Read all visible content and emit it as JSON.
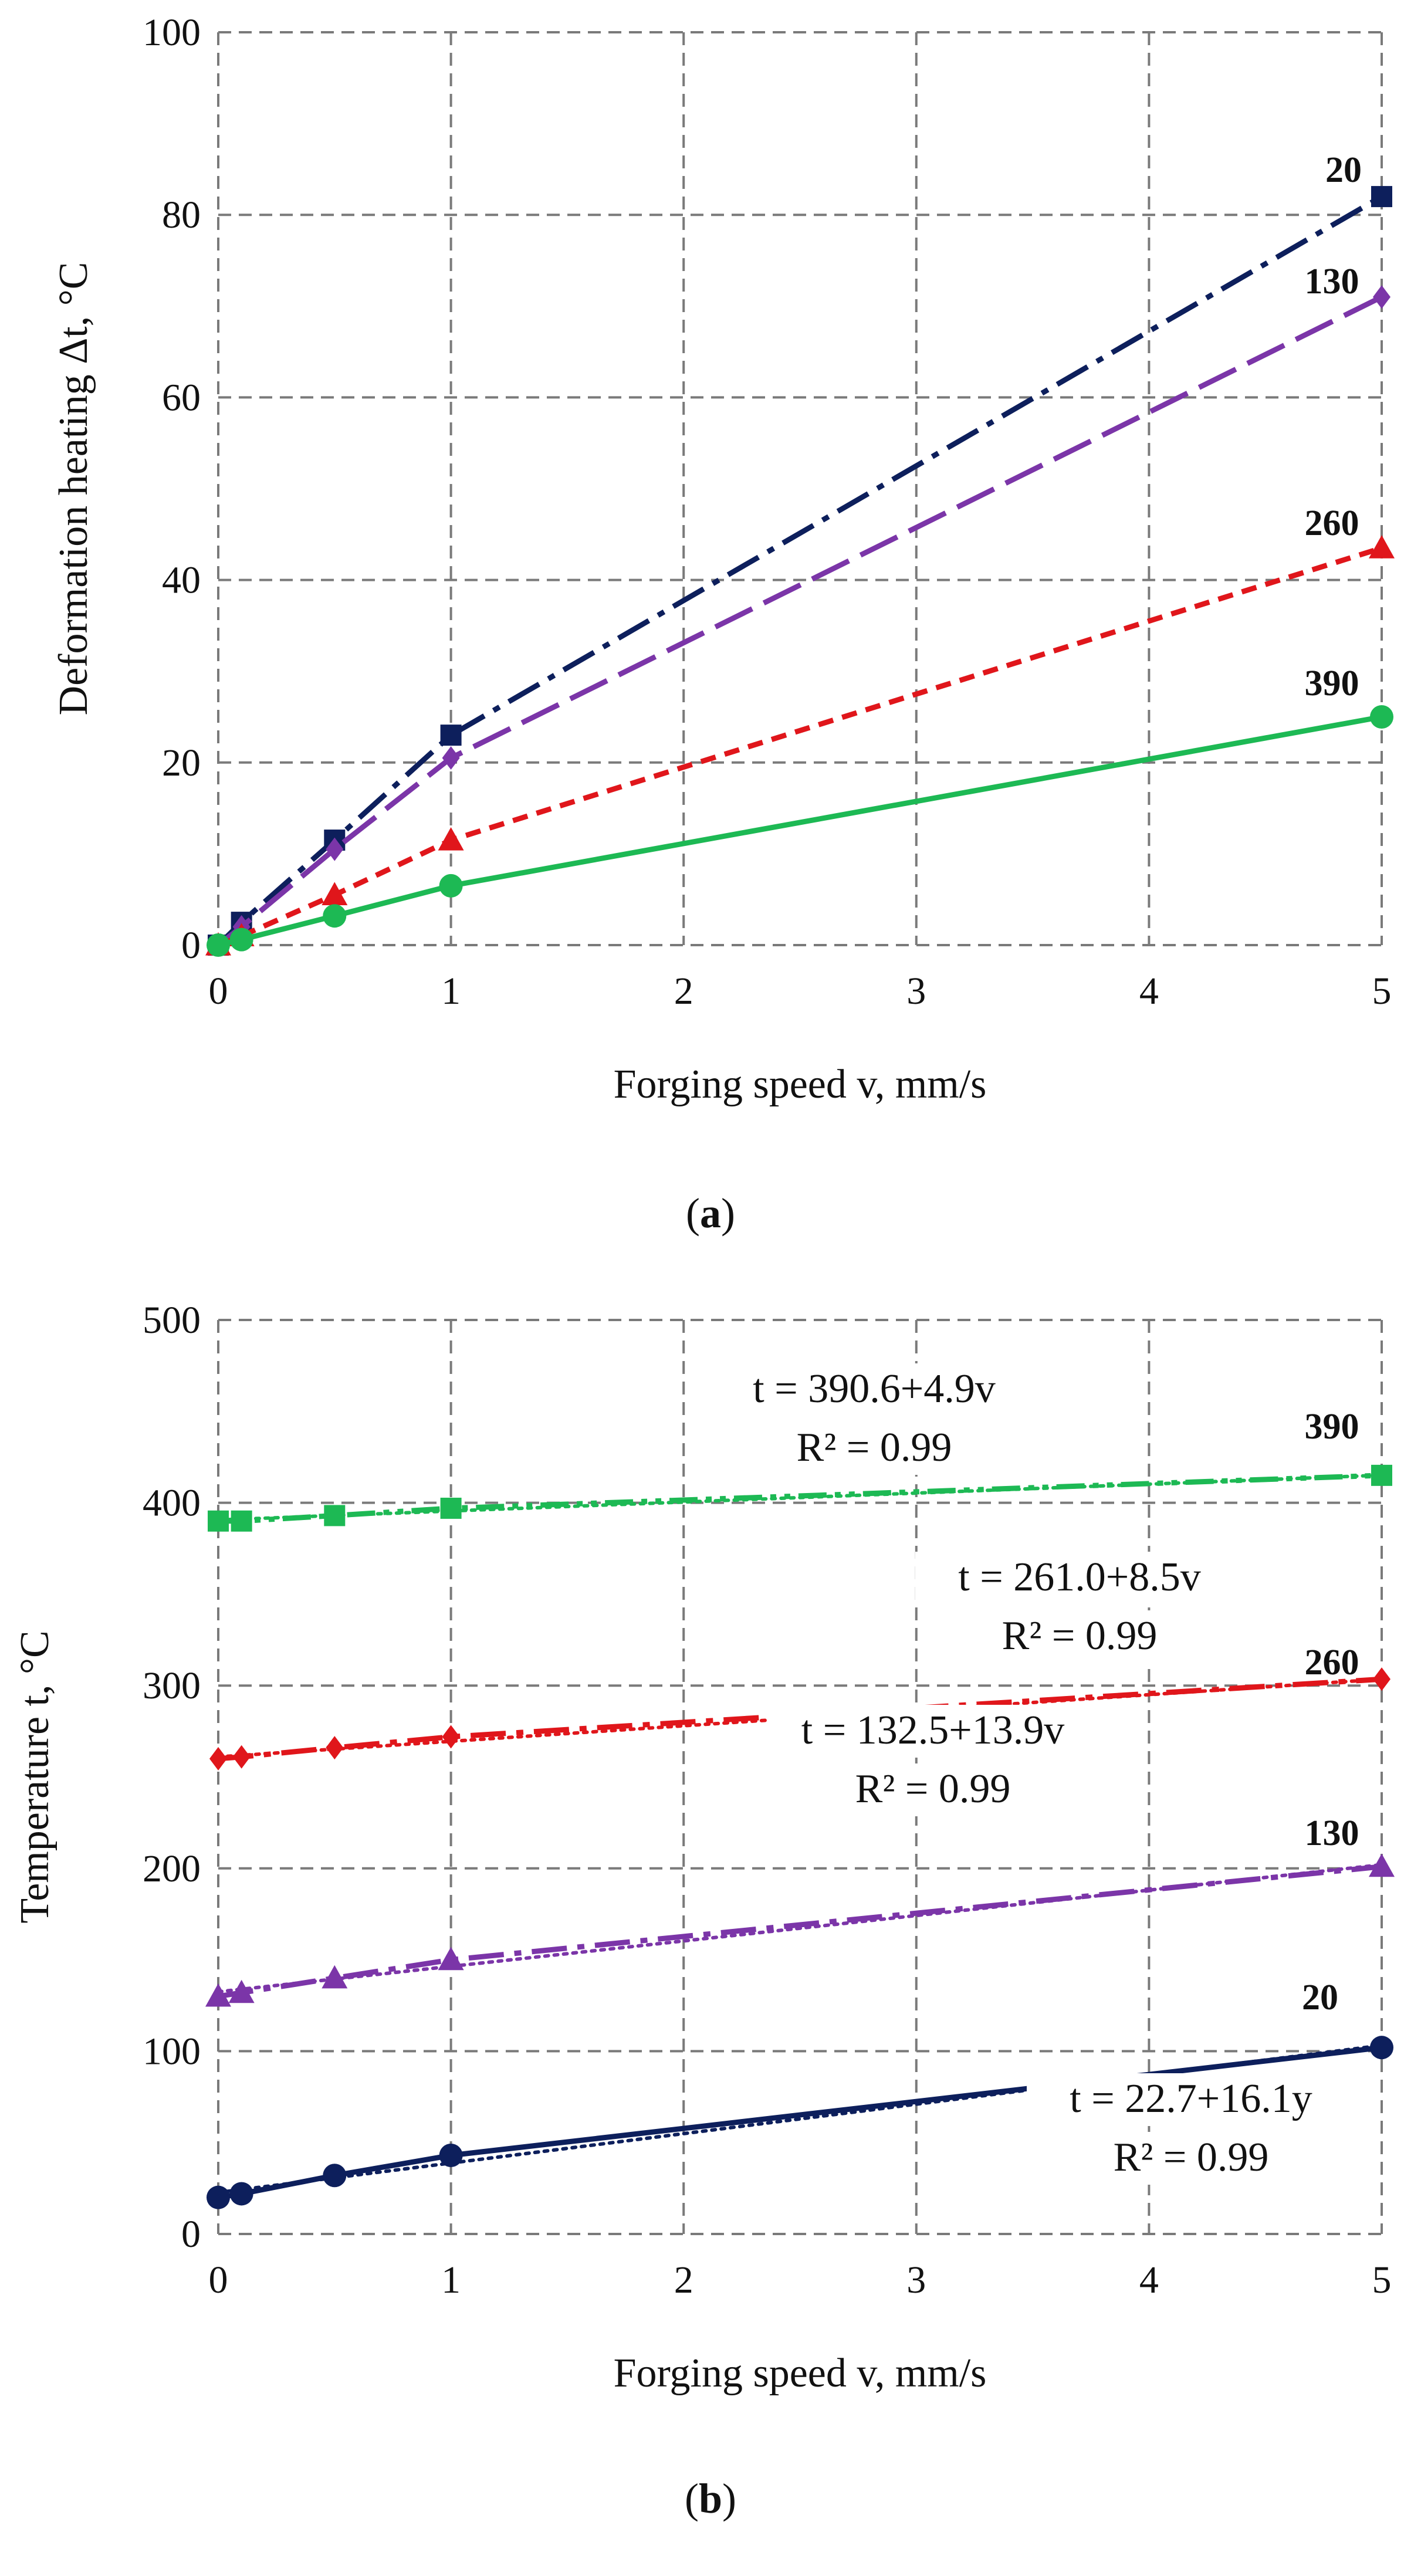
{
  "chart_data": [
    {
      "panel": "a",
      "type": "line",
      "xlabel": "Forging speed v, mm/s",
      "ylabel": "Deformation heating  Δt, °C",
      "ylim": [
        0,
        100
      ],
      "yticks": [
        0,
        20,
        40,
        60,
        80,
        100
      ],
      "categories": [
        "0",
        "0.1",
        "0.5",
        "1",
        "5"
      ],
      "xtick_labels": [
        "0",
        "1",
        "2",
        "3",
        "4",
        "5"
      ],
      "grid": true,
      "series": [
        {
          "name": "20",
          "color": "#0d1f5c",
          "marker": "square",
          "dash": "dashdot",
          "values": [
            0,
            2.5,
            11.5,
            23,
            82
          ]
        },
        {
          "name": "130",
          "color": "#7b35a8",
          "marker": "diamond",
          "dash": "longdash",
          "values": [
            0,
            2,
            10.5,
            20.5,
            71
          ]
        },
        {
          "name": "260",
          "color": "#e0161b",
          "marker": "triangle",
          "dash": "dash",
          "values": [
            0,
            1,
            5.5,
            11.5,
            43.5
          ]
        },
        {
          "name": "390",
          "color": "#1db954",
          "marker": "circle",
          "dash": "solid",
          "values": [
            0,
            0.6,
            3.2,
            6.5,
            25
          ]
        }
      ],
      "caption": "a"
    },
    {
      "panel": "b",
      "type": "line",
      "xlabel": "Forging speed v, mm/s",
      "ylabel": "Temperature t, °C",
      "ylim": [
        0,
        500
      ],
      "yticks": [
        0,
        100,
        200,
        300,
        400,
        500
      ],
      "categories": [
        "0",
        "0.1",
        "0.5",
        "1",
        "5"
      ],
      "xtick_labels": [
        "0",
        "1",
        "2",
        "3",
        "4",
        "5"
      ],
      "grid": true,
      "series": [
        {
          "name": "390",
          "color": "#1db954",
          "marker": "square",
          "dash": "dashdotdot",
          "values": [
            390,
            390,
            393,
            397,
            415
          ],
          "trend": {
            "a": 390.6,
            "b": 4.9
          },
          "equation": "t = 390.6+4.9v",
          "r2": "R² = 0.99"
        },
        {
          "name": "260",
          "color": "#e0161b",
          "marker": "diamond",
          "dash": "dashdot",
          "values": [
            260,
            261,
            266,
            272,
            303.5
          ],
          "trend": {
            "a": 261.0,
            "b": 8.5
          },
          "equation": "t = 261.0+8.5v",
          "r2": "R² = 0.99"
        },
        {
          "name": "130",
          "color": "#7b35a8",
          "marker": "triangle",
          "dash": "dashdot",
          "values": [
            130,
            132,
            140,
            150,
            201
          ],
          "trend": {
            "a": 132.5,
            "b": 13.9
          },
          "equation": "t = 132.5+13.9v",
          "r2": "R² = 0.99"
        },
        {
          "name": "20",
          "color": "#0d1f5c",
          "marker": "circle",
          "dash": "solid",
          "values": [
            20,
            22,
            32,
            43,
            102
          ],
          "trend": {
            "a": 22.7,
            "b": 16.1
          },
          "equation": "t = 22.7+16.1y",
          "r2": "R² = 0.99"
        }
      ],
      "caption": "b"
    }
  ]
}
